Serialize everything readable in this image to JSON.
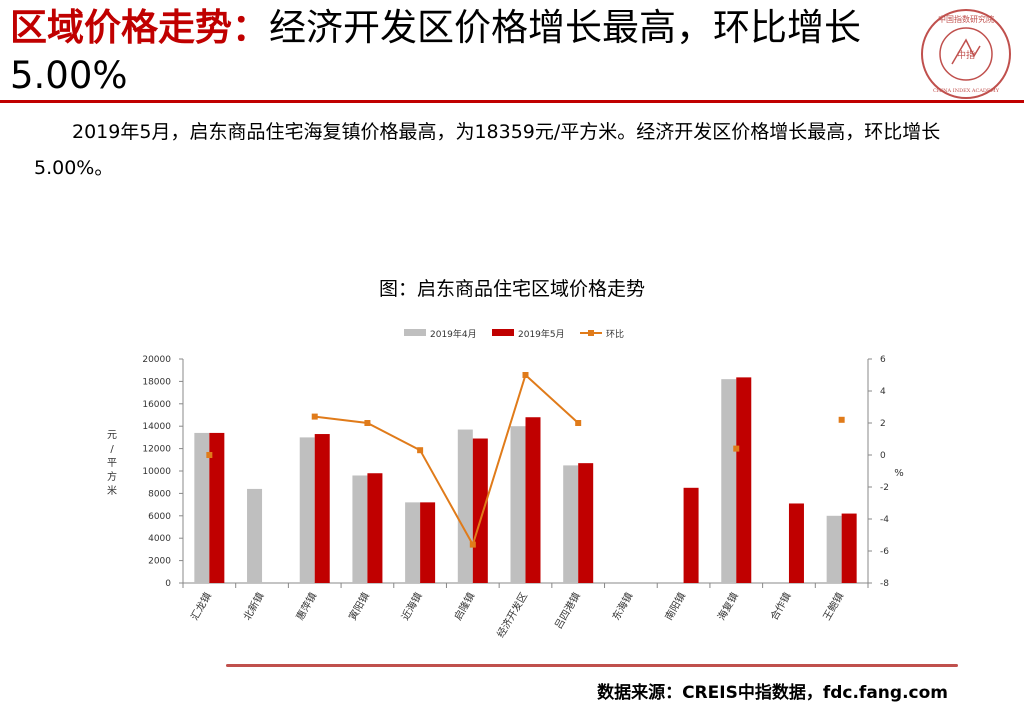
{
  "header": {
    "title_highlight": "区域价格走势：",
    "title_rest": "经济开发区价格增长最高，环比增长5.00%"
  },
  "logo": {
    "text_top": "中国指数研究院",
    "text_center": "中指",
    "text_bottom": "CHINA INDEX ACADEMY"
  },
  "summary": "2019年5月，启东商品住宅海复镇价格最高，为18359元/平方米。经济开发区价格增长最高，环比增长5.00%。",
  "chart_title": "图：启东商品住宅区域价格走势",
  "chart_data": {
    "type": "bar",
    "categories": [
      "汇龙镇",
      "北新镇",
      "惠萍镇",
      "寅阳镇",
      "近海镇",
      "启隆镇",
      "经济开发区",
      "吕四港镇",
      "东海镇",
      "南阳镇",
      "海复镇",
      "合作镇",
      "王鲍镇"
    ],
    "series": [
      {
        "name": "2019年4月",
        "type": "bar",
        "color": "#bfbfbf",
        "values": [
          13400,
          8400,
          13000,
          9600,
          7200,
          13700,
          14000,
          10500,
          null,
          null,
          18200,
          null,
          6000
        ]
      },
      {
        "name": "2019年5月",
        "type": "bar",
        "color": "#c00000",
        "values": [
          13400,
          null,
          13300,
          9800,
          7200,
          12900,
          14800,
          10700,
          null,
          8500,
          18359,
          7100,
          6200
        ]
      },
      {
        "name": "环比",
        "type": "line",
        "axis": "right",
        "color": "#e07b1a",
        "values": [
          0.0,
          null,
          2.4,
          2.0,
          0.3,
          -5.6,
          5.0,
          2.0,
          null,
          null,
          0.4,
          null,
          2.2
        ]
      }
    ],
    "y_left": {
      "label": "元/平方米",
      "ylim": [
        0,
        20000
      ],
      "ticks": [
        0,
        2000,
        4000,
        6000,
        8000,
        10000,
        12000,
        14000,
        16000,
        18000,
        20000
      ]
    },
    "y_right": {
      "label": "%",
      "ylim": [
        -8,
        6
      ],
      "ticks": [
        -8,
        -6,
        -4,
        -2,
        0,
        2,
        4,
        6
      ]
    },
    "grid": false,
    "legend_position": "top"
  },
  "footer": {
    "source": "数据来源：CREIS中指数据，fdc.fang.com"
  }
}
